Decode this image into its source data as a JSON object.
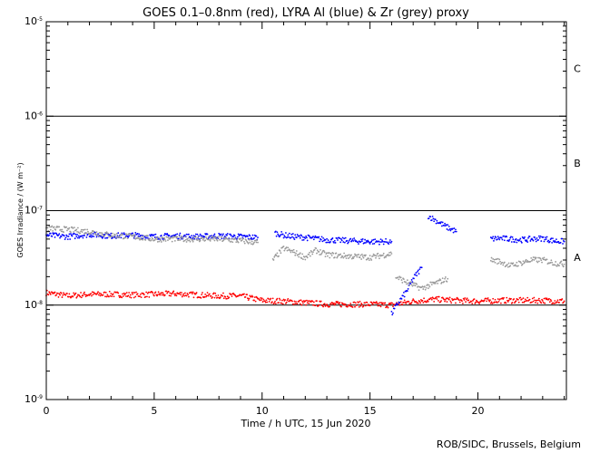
{
  "chart_data": {
    "type": "scatter",
    "title": "GOES 0.1–0.8nm (red), LYRA Al (blue) & Zr (grey) proxy",
    "xlabel": "Time / h UTC, 15 Jun 2020",
    "ylabel": "GOES Irradiance / (W m⁻²)",
    "xlim": [
      0,
      24.1
    ],
    "ylim": [
      1e-09,
      1e-05
    ],
    "yscale": "log",
    "x_ticks": [
      "0",
      "5",
      "10",
      "15",
      "20"
    ],
    "y_ticks": [
      {
        "base": "10",
        "exp": "-9"
      },
      {
        "base": "10",
        "exp": "-8"
      },
      {
        "base": "10",
        "exp": "-7"
      },
      {
        "base": "10",
        "exp": "-6"
      },
      {
        "base": "10",
        "exp": "-5"
      }
    ],
    "flare_class_lines": [
      1e-08,
      1e-07,
      1e-06
    ],
    "flare_class_labels": [
      {
        "label": "A",
        "y": 3.2e-08
      },
      {
        "label": "B",
        "y": 3.2e-07
      },
      {
        "label": "C",
        "y": 3.2e-06
      }
    ],
    "series": [
      {
        "color": "#ff0000",
        "segments": [
          {
            "x": [
              0.0,
              1.0,
              2.0,
              3.0,
              4.0,
              5.0,
              6.0,
              7.0,
              8.0,
              9.0,
              10.0,
              11.0,
              12.0,
              13.0,
              14.0,
              15.0,
              16.0,
              17.0,
              18.0,
              19.0,
              20.0,
              21.0,
              22.0,
              23.0,
              24.0
            ],
            "y": [
              1.35e-08,
              1.25e-08,
              1.3e-08,
              1.3e-08,
              1.28e-08,
              1.3e-08,
              1.32e-08,
              1.28e-08,
              1.25e-08,
              1.25e-08,
              1.12e-08,
              1.1e-08,
              1.06e-08,
              1.02e-08,
              1.02e-08,
              1.02e-08,
              1e-08,
              1.1e-08,
              1.15e-08,
              1.12e-08,
              1.1e-08,
              1.12e-08,
              1.12e-08,
              1.12e-08,
              1.1e-08
            ]
          }
        ]
      },
      {
        "color": "#0000ff",
        "segments": [
          {
            "x": [
              0.0,
              1.0,
              2.0,
              3.0,
              4.0,
              5.0,
              6.0,
              7.0,
              8.0,
              9.0,
              9.8
            ],
            "y": [
              5.5e-08,
              5.3e-08,
              5.6e-08,
              5.4e-08,
              5.5e-08,
              5.3e-08,
              5.4e-08,
              5.3e-08,
              5.4e-08,
              5.3e-08,
              5.2e-08
            ]
          },
          {
            "x": [
              10.6,
              11.0,
              11.5,
              12.0,
              13.0,
              14.0,
              15.0,
              16.0
            ],
            "y": [
              5.8e-08,
              5.5e-08,
              5.3e-08,
              5.2e-08,
              4.9e-08,
              4.8e-08,
              4.7e-08,
              4.7e-08
            ]
          },
          {
            "x": [
              16.0,
              16.3,
              16.7,
              17.0,
              17.4
            ],
            "y": [
              8e-09,
              1.05e-08,
              1.4e-08,
              1.9e-08,
              2.5e-08
            ]
          },
          {
            "x": [
              17.7,
              18.0,
              18.5,
              19.0
            ],
            "y": [
              8.8e-08,
              8e-08,
              6.8e-08,
              6e-08
            ]
          },
          {
            "x": [
              20.6,
              21.0,
              21.5,
              22.0,
              22.5,
              23.0,
              23.5,
              24.0
            ],
            "y": [
              5e-08,
              5.1e-08,
              5e-08,
              4.9e-08,
              5e-08,
              5.1e-08,
              4.8e-08,
              4.7e-08
            ]
          }
        ]
      },
      {
        "color": "#9a9a9a",
        "segments": [
          {
            "x": [
              0.0,
              1.0,
              2.0,
              3.0,
              4.0,
              5.0,
              6.0,
              7.0,
              8.0,
              9.0,
              9.8
            ],
            "y": [
              6.5e-08,
              6.3e-08,
              6e-08,
              5.5e-08,
              5.3e-08,
              5e-08,
              5e-08,
              5e-08,
              5e-08,
              4.8e-08,
              4.6e-08
            ]
          },
          {
            "x": [
              10.5,
              11.0,
              11.5,
              12.0,
              12.5,
              13.0,
              14.0,
              15.0,
              16.0
            ],
            "y": [
              3e-08,
              4e-08,
              3.6e-08,
              3.2e-08,
              3.8e-08,
              3.4e-08,
              3.3e-08,
              3.2e-08,
              3.5e-08
            ]
          },
          {
            "x": [
              16.2,
              16.8,
              17.4,
              18.0,
              18.6
            ],
            "y": [
              2e-08,
              1.7e-08,
              1.5e-08,
              1.7e-08,
              1.9e-08
            ]
          },
          {
            "x": [
              20.6,
              21.0,
              21.5,
              22.0,
              22.5,
              23.0,
              23.5,
              24.0
            ],
            "y": [
              3e-08,
              2.9e-08,
              2.6e-08,
              2.8e-08,
              3e-08,
              3e-08,
              2.8e-08,
              2.7e-08
            ]
          }
        ]
      }
    ]
  },
  "footer": {
    "credit": "ROB/SIDC, Brussels, Belgium"
  }
}
